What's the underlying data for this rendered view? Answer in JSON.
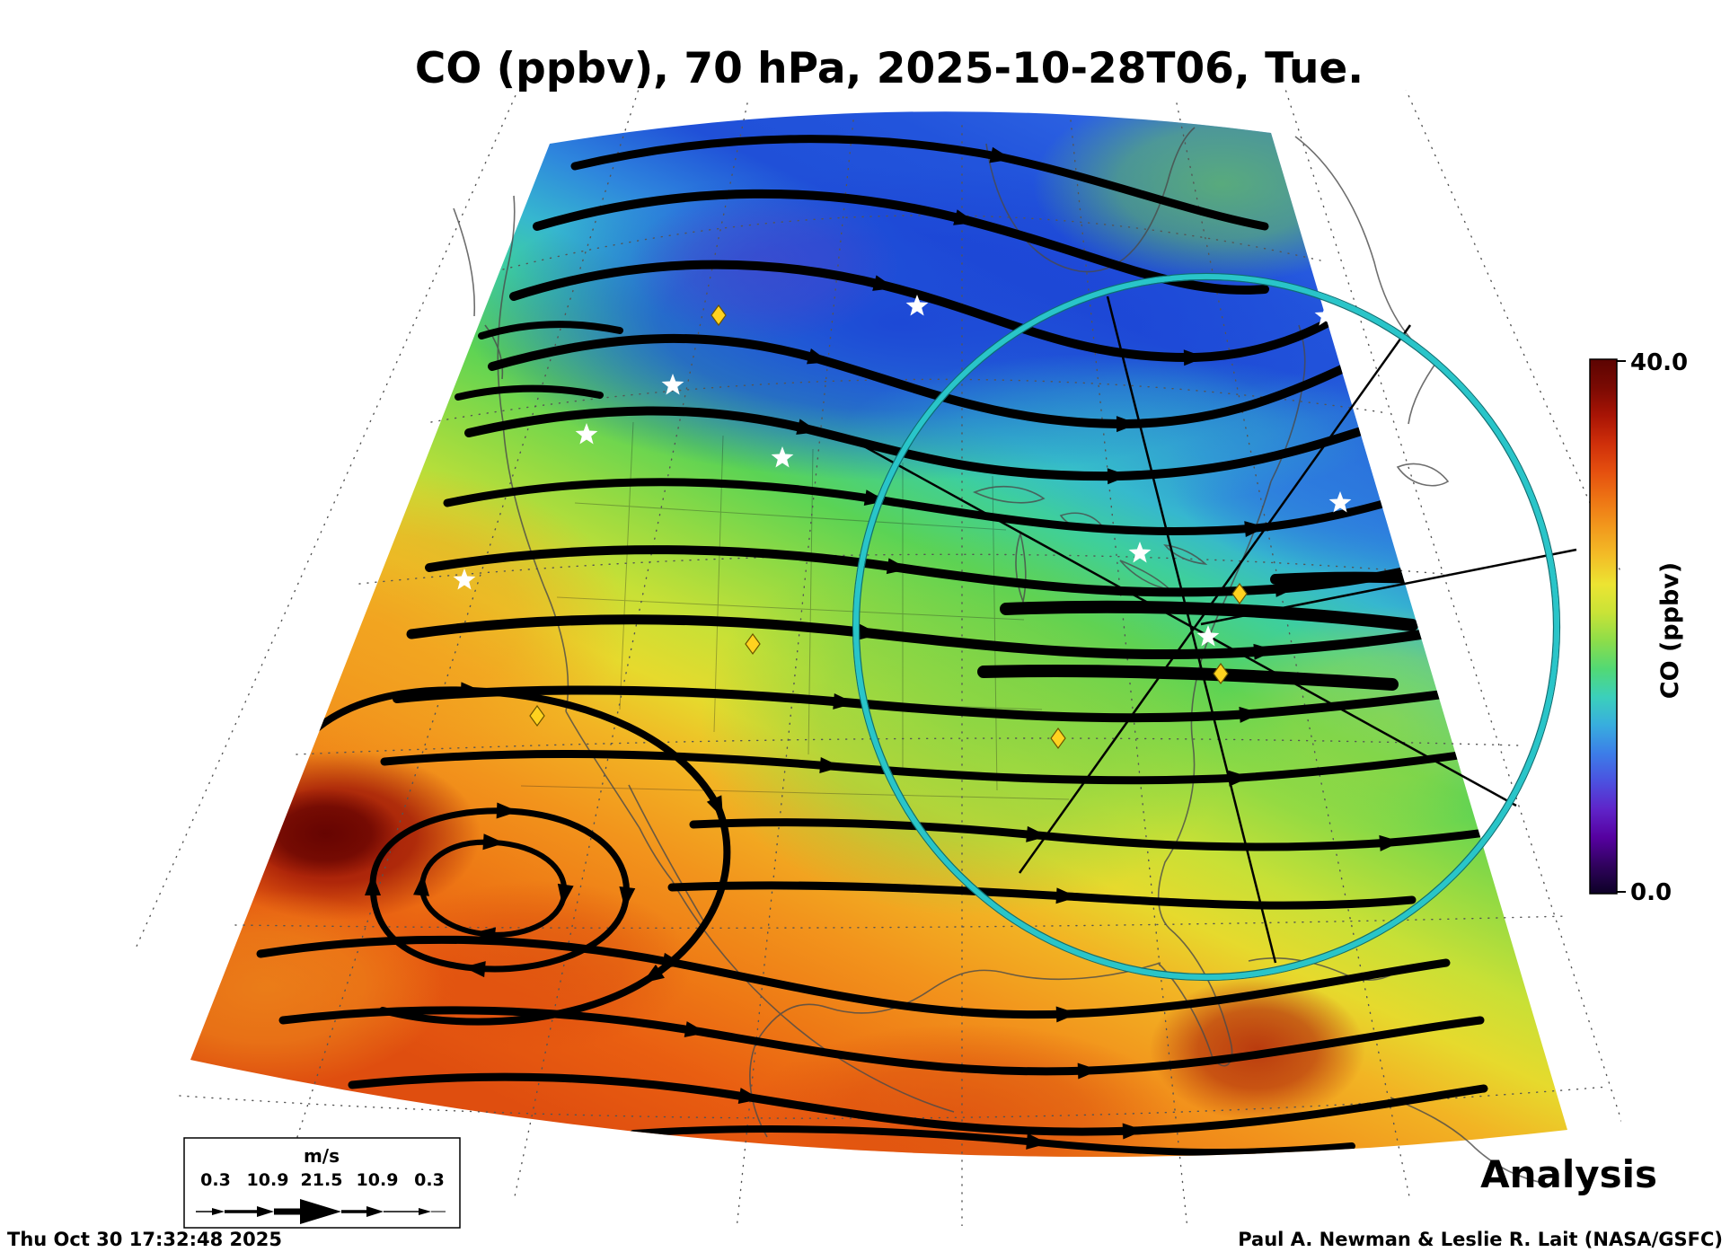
{
  "title": "CO (ppbv), 70 hPa, 2025-10-28T06, Tue.",
  "colorbar": {
    "max_label": "40.0",
    "min_label": "0.0",
    "axis_label": "CO (ppbv)",
    "stops": [
      "#0d0126",
      "#30025e",
      "#5601a0",
      "#5f24c9",
      "#4b52e0",
      "#3c7ee8",
      "#38aede",
      "#3bd0bb",
      "#52d974",
      "#8edd49",
      "#c9e337",
      "#ece432",
      "#f3bd27",
      "#f29a1d",
      "#ee7514",
      "#e5500f",
      "#cf2f0a",
      "#a81405",
      "#7a0a03",
      "#5c0402"
    ]
  },
  "wind_legend": {
    "units": "m/s",
    "values": [
      "0.3",
      "10.9",
      "21.5",
      "10.9",
      "0.3"
    ]
  },
  "annotations": {
    "analysis": "Analysis"
  },
  "footer": {
    "timestamp": "Thu Oct 30 17:32:48 2025",
    "credit": "Paul A. Newman & Leslie R. Lait (NASA/GSFC)"
  },
  "markers": {
    "station_color": "#ffd21f",
    "circle_color": "#29c5c9"
  },
  "chart_data": {
    "type": "heatmap",
    "title": "CO (ppbv), 70 hPa, 2025-10-28T06, Tue.",
    "variable": "CO",
    "units": "ppbv",
    "pressure_level_hPa": 70,
    "valid_time": "2025-10-28T06",
    "weekday": "Tue.",
    "product": "Analysis",
    "colorbar": {
      "label": "CO (ppbv)",
      "min": 0.0,
      "max": 40.0
    },
    "wind_vector_scale_ms": [
      0.3,
      10.9,
      21.5,
      10.9,
      0.3
    ],
    "region": "North America (conic fan projection)",
    "field_pattern": [
      {
        "area": "northern Canada (map top)",
        "value_ppbv": "5-12",
        "color": "blue"
      },
      {
        "area": "northern US / southern Canada",
        "value_ppbv": "15-22",
        "color": "green"
      },
      {
        "area": "southern US",
        "value_ppbv": "24-30",
        "color": "yellow-orange"
      },
      {
        "area": "Mexico / subtropics (map bottom)",
        "value_ppbv": "28-36",
        "color": "orange-red"
      },
      {
        "area": "Pacific west of Baja California",
        "value_ppbv": "38-40",
        "color": "dark red"
      }
    ],
    "overlays": [
      "black wind streamlines with arrowheads",
      "dotted latitude-longitude graticule",
      "coastlines and state borders",
      "cyan range circle over eastern US",
      "straight trajectory lines through circle center",
      "6 yellow diamond station markers",
      "9 white star city markers"
    ]
  }
}
